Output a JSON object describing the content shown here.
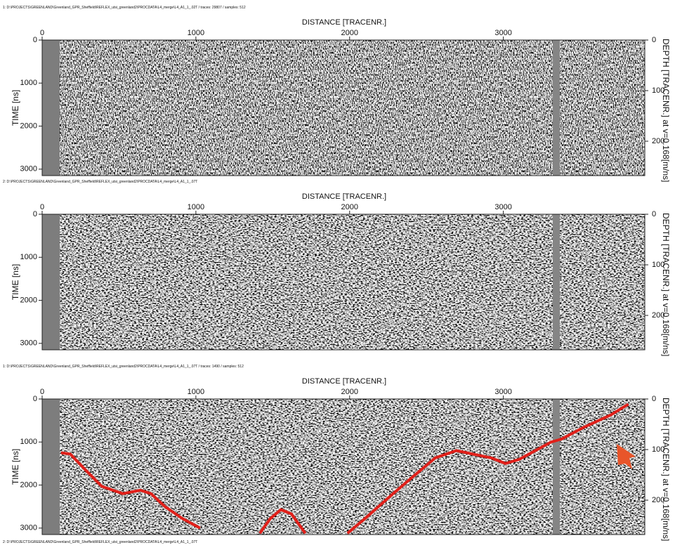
{
  "chart_data": [
    {
      "type": "radargram",
      "header": "1: D:\\PROJECTS\\GREENLAND\\Greenland_GPR_Sheffield\\REFLEX_utsi_greenland2\\PROCDATA\\L4_merge\\L4_A1_1_.02T / traces: 29807 / samples: 512",
      "title": "DISTANCE [TRACENR.]",
      "y_label": "TIME [ns]",
      "y2_label": "DEPTH [TRACENR.] at v=0.168[m/ns]",
      "xlim": [
        0,
        3920
      ],
      "xticks": [
        0,
        1000,
        2000,
        3000
      ],
      "ylim": [
        0,
        3150
      ],
      "yticks": [
        0,
        1000,
        2000,
        3000
      ],
      "y2lim": [
        0,
        268
      ],
      "y2ticks": [
        0,
        100,
        200
      ]
    },
    {
      "type": "radargram",
      "header": "2: D:\\PROJECTS\\GREENLAND\\Greenland_GPR_Sheffield\\REFLEX_utsi_greenland2\\PROCDATA\\L4_merge\\L4_A1_1_.07T",
      "title": "DISTANCE [TRACENR.]",
      "y_label": "TIME [ns]",
      "y2_label": "DEPTH [TRACENR.] at v=0.168[m/ns]",
      "xlim": [
        0,
        3920
      ],
      "xticks": [
        0,
        1000,
        2000,
        3000
      ],
      "ylim": [
        0,
        3150
      ],
      "yticks": [
        0,
        1000,
        2000,
        3000
      ],
      "y2lim": [
        0,
        268
      ],
      "y2ticks": [
        0,
        100,
        200
      ]
    },
    {
      "type": "radargram",
      "header": "1: D:\\PROJECTS\\GREENLAND\\Greenland_GPR_Sheffield\\REFLEX_utsi_greenland2\\PROCDATA\\L4_merge\\L4_A1_1_.07T / traces: 1490 / samples: 512",
      "title": "DISTANCE [TRACENR.]",
      "y_label": "TIME [ns]",
      "y2_label": "DEPTH [TRACENR.] at v=0.168[m/ns]",
      "xlim": [
        0,
        3920
      ],
      "xticks": [
        0,
        1000,
        2000,
        3000
      ],
      "ylim": [
        0,
        3150
      ],
      "yticks": [
        0,
        1000,
        2000,
        3000
      ],
      "y2lim": [
        0,
        268
      ],
      "y2ticks": [
        0,
        100,
        200
      ],
      "pick": {
        "color": "#e0201a",
        "x": [
          123,
          183,
          274,
          388,
          525,
          639,
          708,
          799,
          913,
          1027,
          null,
          1416,
          1484,
          1553,
          1621,
          1712,
          null,
          1986,
          2100,
          2283,
          2420,
          2557,
          2694,
          2922,
          3014,
          3105,
          3311,
          3379,
          3516,
          3699,
          3813
        ],
        "values": [
          1250,
          1280,
          1620,
          2030,
          2200,
          2120,
          2200,
          2500,
          2780,
          3000,
          null,
          3120,
          2780,
          2570,
          2670,
          3120,
          null,
          3120,
          2780,
          2200,
          1780,
          1370,
          1200,
          1370,
          1500,
          1400,
          1000,
          930,
          670,
          370,
          120
        ]
      }
    }
  ],
  "footer": "2: D:\\PROJECTS\\GREENLAND\\Greenland_GPR_Sheffield\\REFLEX_utsi_greenland2\\PROCDATA\\L4_merge\\L4_A1_1_.07T"
}
